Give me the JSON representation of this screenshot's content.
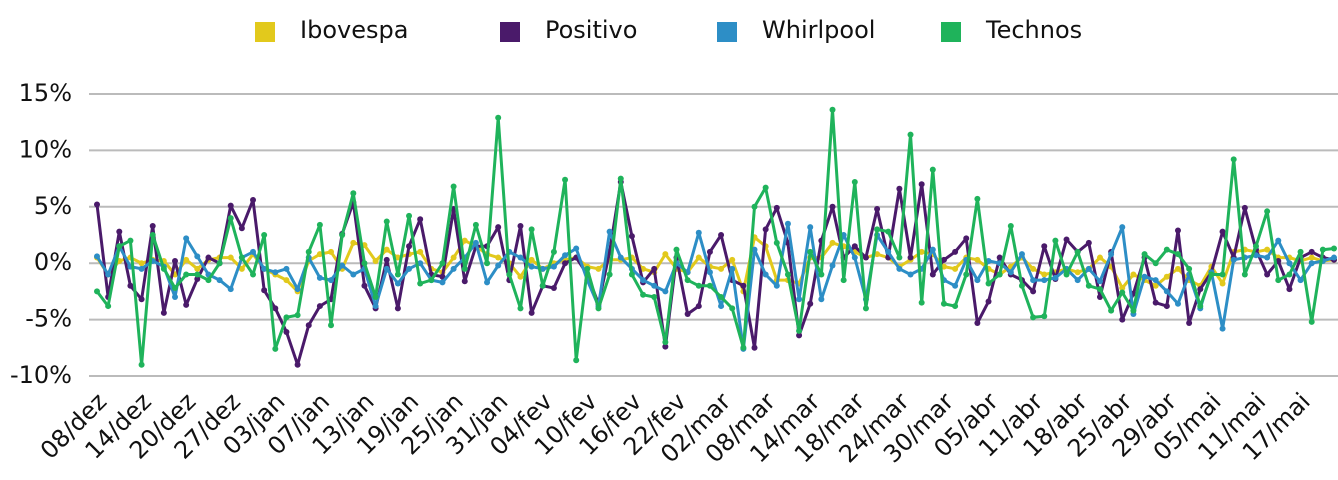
{
  "chart_data": {
    "type": "line",
    "categories": [
      "08/dez",
      null,
      null,
      null,
      "14/dez",
      null,
      null,
      null,
      "20/dez",
      null,
      null,
      null,
      "27/dez",
      null,
      null,
      null,
      "03/jan",
      null,
      null,
      null,
      "07/jan",
      null,
      null,
      null,
      "13/jan",
      null,
      null,
      null,
      "19/jan",
      null,
      null,
      null,
      "25/jan",
      null,
      null,
      null,
      "31/jan",
      null,
      null,
      null,
      "04/fev",
      null,
      null,
      null,
      "10/fev",
      null,
      null,
      null,
      "16/fev",
      null,
      null,
      null,
      "22/fev",
      null,
      null,
      null,
      "02/mar",
      null,
      null,
      null,
      "08/mar",
      null,
      null,
      null,
      "14/mar",
      null,
      null,
      null,
      "18/mar",
      null,
      null,
      null,
      "24/mar",
      null,
      null,
      null,
      "30/mar",
      null,
      null,
      null,
      "05/abr",
      null,
      null,
      null,
      "11/abr",
      null,
      null,
      null,
      "18/abr",
      null,
      null,
      null,
      "25/abr",
      null,
      null,
      null,
      "29/abr",
      null,
      null,
      null,
      "05/mai",
      null,
      null,
      null,
      "11/mai",
      null,
      null,
      null,
      "17/mai",
      null,
      null,
      null
    ],
    "series": [
      {
        "name": "Ibovespa",
        "color": "#e2c91c",
        "values": [
          0.5,
          -1,
          0.2,
          0.5,
          0,
          0.3,
          0.2,
          -1,
          0.3,
          -0.5,
          0.3,
          0.5,
          0.5,
          -0.5,
          0.8,
          -0.5,
          -1,
          -1.5,
          -2.5,
          0.2,
          0.8,
          1,
          -0.5,
          1.8,
          1.6,
          0.2,
          1.2,
          0.5,
          0.8,
          1,
          -0.5,
          -0.8,
          0.5,
          2,
          1.5,
          0.8,
          0.5,
          0,
          -1.2,
          0.3,
          -0.5,
          0,
          0.3,
          0.5,
          -0.3,
          -0.5,
          0.3,
          0.3,
          0.5,
          -0.5,
          -0.8,
          0.8,
          -0.5,
          -0.8,
          0.5,
          -0.3,
          -0.5,
          0.3,
          -2.5,
          2.3,
          1.5,
          -1.5,
          -1.5,
          -1.8,
          0.5,
          0.5,
          1.8,
          1.5,
          1,
          0.5,
          0.8,
          0.5,
          -0.3,
          0.3,
          1,
          0.8,
          -0.3,
          -0.5,
          0.5,
          0.3,
          -0.5,
          -1,
          -0.3,
          0.5,
          -0.5,
          -1,
          -0.8,
          -0.5,
          -0.8,
          -0.5,
          0.5,
          -0.3,
          -2.2,
          -1,
          -1.5,
          -2,
          -1.2,
          -0.5,
          -1.5,
          -2,
          -0.3,
          -1.8,
          1,
          1.2,
          1,
          1.2,
          0.5,
          0.5,
          0.2,
          0.5,
          0.2,
          0.3
        ]
      },
      {
        "name": "Positivo",
        "color": "#4a1a6a",
        "values": [
          5.2,
          -3,
          2.8,
          -2,
          -3.2,
          3.3,
          -4.4,
          0.2,
          -3.7,
          -1.4,
          0.5,
          0,
          5.1,
          3.1,
          5.6,
          -2.4,
          -4,
          -6.1,
          -9,
          -5.5,
          -3.8,
          -3.2,
          2.6,
          5.4,
          -2,
          -4,
          0.3,
          -4,
          1.5,
          3.9,
          -1,
          -1.2,
          4.8,
          -1.6,
          1.5,
          1.5,
          3.2,
          -1.5,
          3.3,
          -4.4,
          -2,
          -2.2,
          0,
          0.5,
          -1,
          -3.6,
          1,
          7.2,
          2.4,
          -1.7,
          -0.5,
          -7.4,
          0.5,
          -4.5,
          -3.8,
          1,
          2.5,
          -1.5,
          -2,
          -7.5,
          3,
          4.9,
          1.8,
          -6.4,
          -3.6,
          2,
          5,
          0.5,
          1.5,
          0.5,
          4.8,
          0.5,
          6.6,
          0.5,
          7,
          -1,
          0.3,
          1,
          2.2,
          -5.3,
          -3.4,
          0.5,
          -1,
          -1.5,
          -2.5,
          1.5,
          -1.4,
          2.1,
          1,
          1.8,
          -3,
          1,
          -5,
          -2.7,
          0.5,
          -3.5,
          -3.8,
          2.9,
          -5.3,
          -2.3,
          -0.8,
          2.8,
          0.5,
          4.9,
          1.2,
          -1,
          0.2,
          -2.3,
          0.5,
          1,
          0.5,
          0.3
        ]
      },
      {
        "name": "Whirlpool",
        "color": "#2d8ec6",
        "values": [
          0.6,
          -1,
          1.5,
          -0.3,
          -0.5,
          0.2,
          -0.3,
          -3,
          2.2,
          0.6,
          -1,
          -1.5,
          -2.3,
          0.5,
          1,
          -0.5,
          -0.8,
          -0.5,
          -2.3,
          0.5,
          -1.3,
          -1.5,
          -0.2,
          -1,
          -0.5,
          -3.8,
          -0.5,
          -1.8,
          -0.5,
          0,
          -1.5,
          -1.7,
          -0.5,
          0.5,
          1.8,
          -1.7,
          -0.2,
          1,
          0.5,
          -0.3,
          -0.5,
          -0.3,
          0.7,
          1.3,
          -1.5,
          -3.8,
          2.8,
          0.5,
          -0.5,
          -1.5,
          -2,
          -2.5,
          0,
          -0.8,
          2.7,
          -0.8,
          -3.8,
          -0.5,
          -7.6,
          1.2,
          -1,
          -2,
          3.5,
          -3.2,
          3.2,
          -3.2,
          -0.2,
          2.5,
          0.5,
          -3.2,
          2.5,
          1,
          -0.5,
          -1,
          -0.5,
          1.2,
          -1.5,
          -2,
          0.3,
          -1.5,
          0.2,
          0,
          -0.8,
          0.8,
          -1.5,
          -1.5,
          -1.3,
          -0.5,
          -1.5,
          -0.5,
          -1.6,
          0.8,
          3.2,
          -4.5,
          -1.2,
          -1.5,
          -2.5,
          -3.6,
          -1,
          -4,
          -0.8,
          -5.8,
          0.3,
          0.5,
          0.7,
          0.5,
          2,
          0,
          -1.5,
          0,
          0.2,
          0.5
        ]
      },
      {
        "name": "Technos",
        "color": "#1fb35b",
        "values": [
          -2.5,
          -3.8,
          1.5,
          2,
          -9,
          2.5,
          -0.5,
          -2.2,
          -1,
          -1,
          -1.5,
          0,
          4,
          0.5,
          -1,
          2.5,
          -7.6,
          -4.8,
          -4.6,
          1,
          3.4,
          -5.5,
          2.5,
          6.2,
          0,
          -3,
          3.7,
          -1,
          4.2,
          -1.8,
          -1.5,
          0,
          6.8,
          -0.5,
          3.4,
          0,
          12.9,
          -1,
          -4,
          3,
          -2,
          1,
          7.4,
          -8.6,
          -0.5,
          -4,
          -1,
          7.5,
          -1,
          -2.8,
          -3,
          -7,
          1.2,
          -1.5,
          -2,
          -2,
          -3,
          -4,
          -7.5,
          5,
          6.7,
          1.8,
          -1,
          -6,
          1,
          -1,
          13.6,
          -1.5,
          7.2,
          -4,
          3,
          2.8,
          0.5,
          11.4,
          -3.5,
          8.3,
          -3.6,
          -3.8,
          -1,
          5.7,
          -1.8,
          -1,
          3.3,
          -2,
          -4.8,
          -4.7,
          2,
          -1,
          1,
          -2,
          -2.3,
          -4.2,
          -2.6,
          -4.2,
          0.8,
          0,
          1.2,
          0.8,
          -0.5,
          -3.8,
          -1,
          -1,
          9.2,
          -1,
          1.5,
          4.6,
          -1.5,
          -1,
          1,
          -5.2,
          1.2,
          1.3
        ]
      }
    ],
    "ylim": [
      -10,
      15
    ],
    "yticks": [
      {
        "value": -10,
        "label": "-10%"
      },
      {
        "value": -5,
        "label": "-5%"
      },
      {
        "value": 0,
        "label": "0%"
      },
      {
        "value": 5,
        "label": "5%"
      },
      {
        "value": 10,
        "label": "10%"
      },
      {
        "value": 15,
        "label": "15%"
      }
    ],
    "grid": true,
    "legend": "top"
  }
}
